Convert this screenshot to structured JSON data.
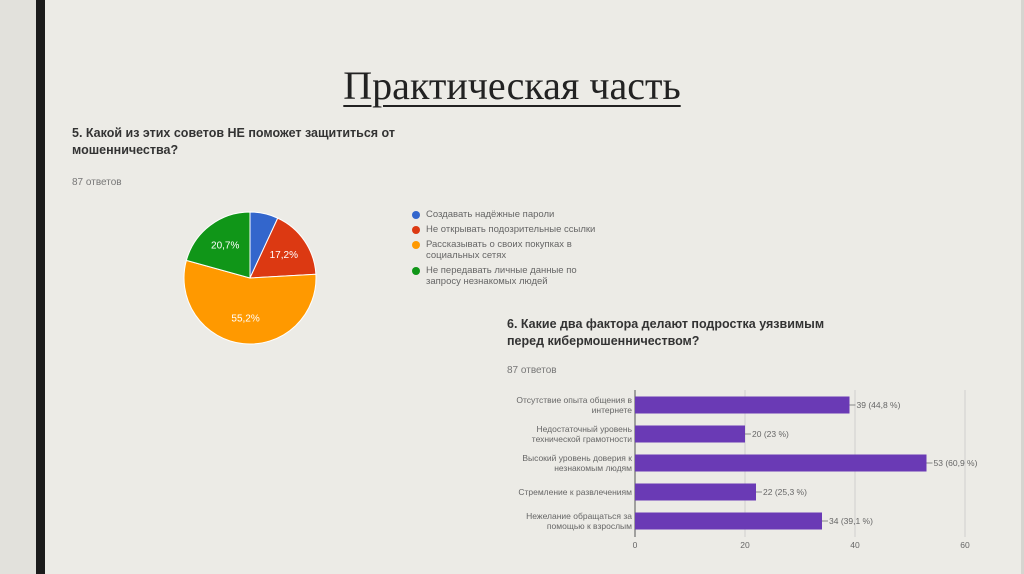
{
  "slide": {
    "title": "Практическая часть"
  },
  "colors": {
    "blue": "#3366cc",
    "red": "#dc3912",
    "orange": "#ff9900",
    "green": "#109618",
    "purple": "#6a3ab5"
  },
  "chart_data": [
    {
      "type": "pie",
      "title": "5. Какой из этих советов НЕ поможет защититься от мошенничества?",
      "subtitle": "87 ответов",
      "legend_position": "right",
      "categories": [
        "Создавать надёжные пароли",
        "Не открывать подозрительные ссылки",
        "Рассказывать о своих покупках в социальных сетях",
        "Не передавать личные данные по запросу незнакомых людей"
      ],
      "values": [
        6.9,
        17.2,
        55.2,
        20.7
      ],
      "labels": [
        "",
        "17,2%",
        "55,2%",
        "20,7%"
      ],
      "colors": [
        "#3366cc",
        "#dc3912",
        "#ff9900",
        "#109618"
      ]
    },
    {
      "type": "bar",
      "orientation": "horizontal",
      "title": "6. Какие два фактора делают подростка уязвимым перед кибермошенничеством?",
      "subtitle": "87 ответов",
      "categories": [
        [
          "Отсутствие опыта общения в",
          "интернете"
        ],
        [
          "Недостаточный уровень",
          "технической грамотности"
        ],
        [
          "Высокий уровень доверия к",
          "незнакомым людям"
        ],
        [
          "Стремление к развлечениям"
        ],
        [
          "Нежелание обращаться за",
          "помощью к взрослым"
        ]
      ],
      "values": [
        39,
        20,
        53,
        22,
        34
      ],
      "value_labels": [
        "39 (44,8 %)",
        "20 (23 %)",
        "53 (60,9 %)",
        "22 (25,3 %)",
        "34 (39,1 %)"
      ],
      "xlim": [
        0,
        60
      ],
      "xticks": [
        0,
        20,
        40,
        60
      ],
      "grid": true,
      "color": "#6a3ab5"
    }
  ]
}
